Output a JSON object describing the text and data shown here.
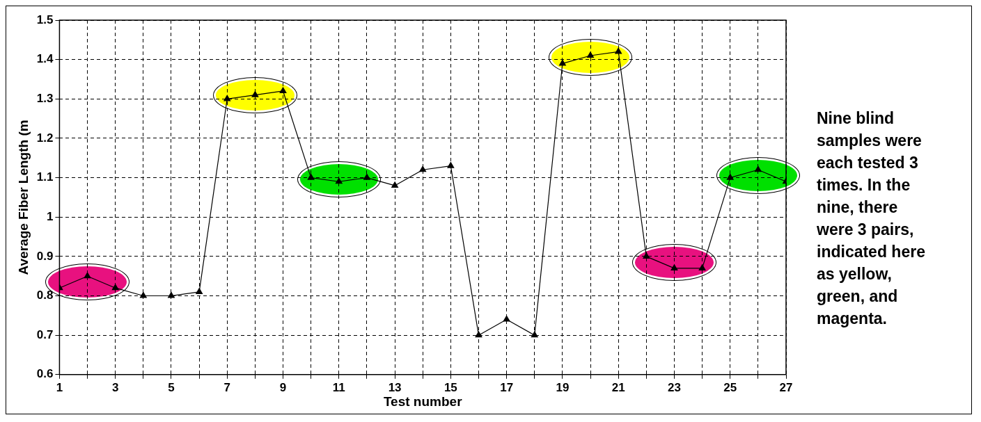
{
  "chart_data": {
    "type": "line",
    "xlabel": "Test number",
    "ylabel": "Average Fiber Length (m",
    "x": [
      1,
      2,
      3,
      4,
      5,
      6,
      7,
      8,
      9,
      10,
      11,
      12,
      13,
      14,
      15,
      16,
      17,
      18,
      19,
      20,
      21,
      22,
      23,
      24,
      25,
      26,
      27
    ],
    "series": [
      {
        "color": "#000000",
        "values": [
          0.82,
          0.85,
          0.82,
          0.8,
          0.8,
          0.81,
          1.3,
          1.31,
          1.32,
          1.1,
          1.09,
          1.1,
          1.08,
          1.12,
          1.13,
          0.7,
          0.74,
          0.7,
          1.39,
          1.41,
          1.42,
          0.9,
          0.87,
          0.87,
          1.1,
          1.12,
          1.09
        ]
      }
    ],
    "xlim": [
      1,
      27
    ],
    "xticks": [
      1,
      {
        "value": 2,
        "label": null
      },
      3,
      {
        "value": 4,
        "label": null
      },
      5,
      {
        "value": 6,
        "label": null
      },
      7,
      {
        "value": 8,
        "label": null
      },
      9,
      {
        "value": 10,
        "label": null
      },
      11,
      {
        "value": 12,
        "label": null
      },
      13,
      {
        "value": 14,
        "label": null
      },
      15,
      {
        "value": 16,
        "label": null
      },
      17,
      {
        "value": 18,
        "label": null
      },
      19,
      {
        "value": 20,
        "label": null
      },
      21,
      {
        "value": 22,
        "label": null
      },
      23,
      {
        "value": 24,
        "label": null
      },
      25,
      {
        "value": 26,
        "label": null
      },
      27
    ],
    "ylim": [
      0.6,
      1.5
    ],
    "yticks": [
      0.6,
      0.7,
      0.8,
      0.9,
      1,
      1.1,
      1.2,
      1.3,
      1.4,
      1.5
    ],
    "grid": true,
    "legend": false,
    "marker": "triangle",
    "line_style": "solid",
    "annotations": [
      "Nine blind samples were each tested 3 times. In the nine,  there were 3 pairs, indicated here as yellow, green, and magenta."
    ]
  }
}
